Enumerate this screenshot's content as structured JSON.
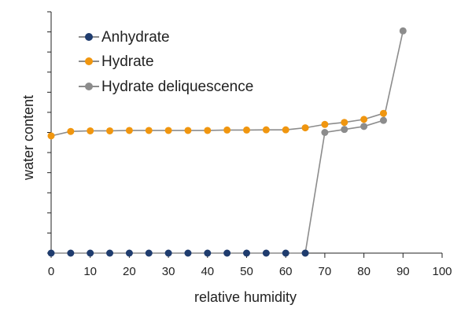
{
  "chart_data": {
    "type": "line",
    "title": "",
    "xlabel": "relative humidity",
    "ylabel": "water content",
    "xlim": [
      0,
      100
    ],
    "ylim": [
      0,
      12
    ],
    "x_ticks": [
      0,
      10,
      20,
      30,
      40,
      50,
      60,
      70,
      80,
      90,
      100
    ],
    "x_tick_labels": [
      "0",
      "10",
      "20",
      "30",
      "40",
      "50",
      "60",
      "70",
      "80",
      "90",
      "100"
    ],
    "y_tick_labels_shown": false,
    "grid": false,
    "legend_position": "top-left",
    "series": [
      {
        "name": "Hydrate deliquescence",
        "color": "#8c8c8c",
        "x": [
          65,
          70,
          75,
          80,
          85,
          90
        ],
        "y": [
          0.0,
          6.0,
          6.15,
          6.3,
          6.6,
          11.05
        ]
      },
      {
        "name": "Hydrate",
        "color": "#f0960f",
        "x": [
          0,
          5,
          10,
          15,
          20,
          25,
          30,
          35,
          40,
          45,
          50,
          55,
          60,
          65,
          70,
          75,
          80,
          85
        ],
        "y": [
          5.83,
          6.05,
          6.08,
          6.08,
          6.1,
          6.1,
          6.1,
          6.1,
          6.1,
          6.12,
          6.12,
          6.13,
          6.13,
          6.23,
          6.4,
          6.5,
          6.65,
          6.95
        ]
      },
      {
        "name": "Anhydrate",
        "color": "#1f3c6e",
        "x": [
          0,
          5,
          10,
          15,
          20,
          25,
          30,
          35,
          40,
          45,
          50,
          55,
          60,
          65
        ],
        "y": [
          0,
          0,
          0,
          0,
          0,
          0,
          0,
          0,
          0,
          0,
          0,
          0,
          0,
          0
        ]
      }
    ],
    "legend": [
      "Anhydrate",
      "Hydrate",
      "Hydrate deliquescence"
    ]
  }
}
